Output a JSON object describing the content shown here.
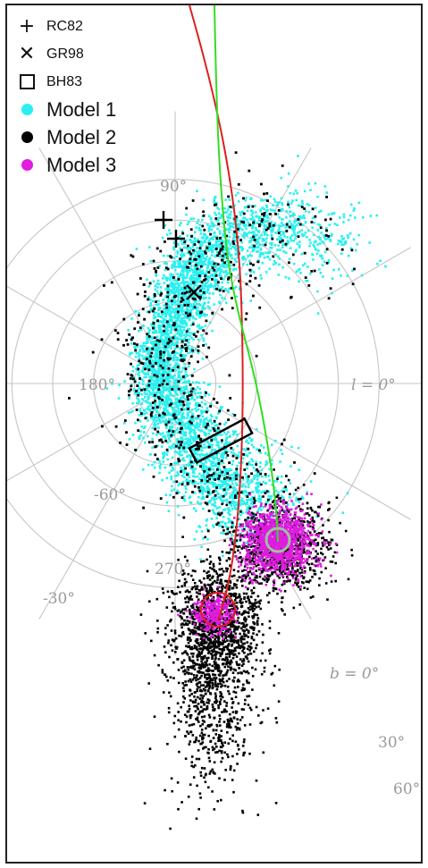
{
  "chart_data": {
    "type": "scatter",
    "projection": "polar (galactic longitude l / latitude b)",
    "legend": {
      "placement": "top-left",
      "items": [
        {
          "label": "RC82",
          "marker": "plus",
          "color": "#000000"
        },
        {
          "label": "GR98",
          "marker": "cross",
          "color": "#000000"
        },
        {
          "label": "BH83",
          "marker": "square-open",
          "color": "#000000"
        },
        {
          "label": "Model 1",
          "marker": "dot",
          "color": "#29f0f0"
        },
        {
          "label": "Model 2",
          "marker": "dot",
          "color": "#000000"
        },
        {
          "label": "Model 3",
          "marker": "dot",
          "color": "#e01ce0"
        }
      ]
    },
    "longitude_labels": [
      "90°",
      "180°",
      "l = 0°",
      "270°"
    ],
    "latitude_labels": [
      "-60°",
      "-30°",
      "b = 0°",
      "30°",
      "60°"
    ],
    "series": [
      {
        "name": "Model 1",
        "color": "#29f0f0"
      },
      {
        "name": "Model 2",
        "color": "#000000"
      },
      {
        "name": "Model 3",
        "color": "#e01ce0"
      }
    ],
    "observations": [
      {
        "label": "RC82",
        "marker": "plus",
        "points": [
          {
            "l": 105,
            "b": -66
          },
          {
            "l": 100,
            "b": -64
          }
        ]
      },
      {
        "label": "GR98",
        "marker": "cross",
        "points": [
          {
            "l": 100,
            "b": -76
          }
        ]
      },
      {
        "label": "BH83",
        "marker": "square-open",
        "points": [
          {
            "l": 300,
            "b": -78
          }
        ]
      }
    ],
    "orbits": [
      {
        "color": "#dd2020"
      },
      {
        "color": "#33dd22"
      }
    ],
    "grid": true
  }
}
